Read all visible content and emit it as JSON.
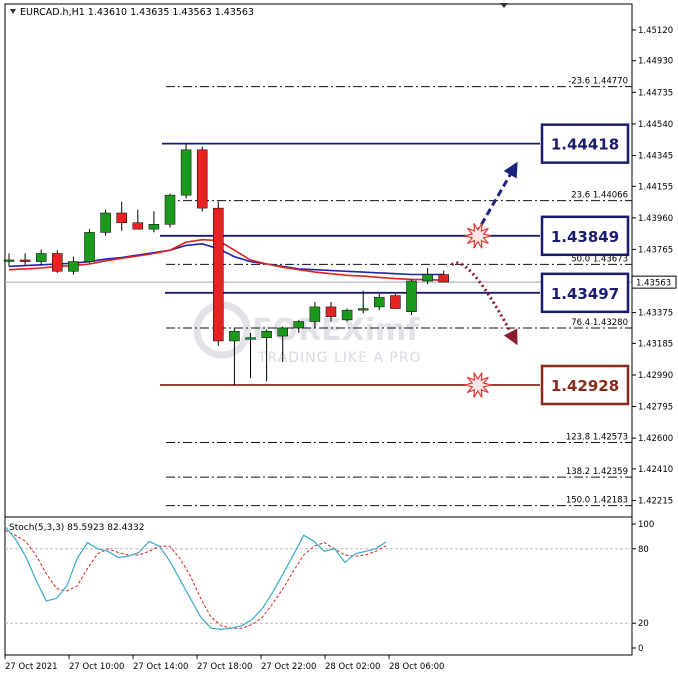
{
  "chart_data": {
    "type": "candlestick",
    "symbol_title": "EURCAD.h,H1  1.43610 1.43635 1.43563 1.43563",
    "current_price": "1.43563",
    "price_axis": {
      "ylim": [
        1.4215,
        1.452
      ],
      "ticks": [
        "1.45120",
        "1.44930",
        "1.44735",
        "1.44540",
        "1.44345",
        "1.44155",
        "1.43960",
        "1.43765",
        "1.43570",
        "1.43375",
        "1.43185",
        "1.42990",
        "1.42795",
        "1.42600",
        "1.42410",
        "1.42215"
      ]
    },
    "time_labels": [
      "27 Oct 2021",
      "27 Oct 10:00",
      "27 Oct 14:00",
      "27 Oct 18:00",
      "27 Oct 22:00",
      "28 Oct 02:00",
      "28 Oct 06:00"
    ],
    "candles": [
      {
        "o": 1.43695,
        "h": 1.4374,
        "l": 1.4366,
        "c": 1.437
      },
      {
        "o": 1.437,
        "h": 1.4374,
        "l": 1.4367,
        "c": 1.4369
      },
      {
        "o": 1.4369,
        "h": 1.43765,
        "l": 1.4367,
        "c": 1.4374
      },
      {
        "o": 1.4374,
        "h": 1.4376,
        "l": 1.4362,
        "c": 1.4363
      },
      {
        "o": 1.4363,
        "h": 1.4372,
        "l": 1.4361,
        "c": 1.4369
      },
      {
        "o": 1.4369,
        "h": 1.4389,
        "l": 1.4368,
        "c": 1.4387
      },
      {
        "o": 1.4387,
        "h": 1.4401,
        "l": 1.4385,
        "c": 1.4399
      },
      {
        "o": 1.4399,
        "h": 1.4406,
        "l": 1.4388,
        "c": 1.4393
      },
      {
        "o": 1.4393,
        "h": 1.4401,
        "l": 1.4389,
        "c": 1.4389
      },
      {
        "o": 1.4389,
        "h": 1.44,
        "l": 1.4387,
        "c": 1.4392
      },
      {
        "o": 1.4392,
        "h": 1.4411,
        "l": 1.439,
        "c": 1.441
      },
      {
        "o": 1.441,
        "h": 1.44418,
        "l": 1.4408,
        "c": 1.4438
      },
      {
        "o": 1.4438,
        "h": 1.444,
        "l": 1.44,
        "c": 1.4402
      },
      {
        "o": 1.4402,
        "h": 1.4406,
        "l": 1.4317,
        "c": 1.432
      },
      {
        "o": 1.432,
        "h": 1.4328,
        "l": 1.42928,
        "c": 1.4326
      },
      {
        "o": 1.4321,
        "h": 1.4325,
        "l": 1.4297,
        "c": 1.4322
      },
      {
        "o": 1.4322,
        "h": 1.4327,
        "l": 1.4295,
        "c": 1.4326
      },
      {
        "o": 1.4323,
        "h": 1.4329,
        "l": 1.4307,
        "c": 1.4328
      },
      {
        "o": 1.4328,
        "h": 1.4333,
        "l": 1.4325,
        "c": 1.4332
      },
      {
        "o": 1.4332,
        "h": 1.4344,
        "l": 1.4328,
        "c": 1.4341
      },
      {
        "o": 1.4341,
        "h": 1.4344,
        "l": 1.4332,
        "c": 1.4335
      },
      {
        "o": 1.4333,
        "h": 1.434,
        "l": 1.4332,
        "c": 1.4339
      },
      {
        "o": 1.4339,
        "h": 1.4351,
        "l": 1.4337,
        "c": 1.434
      },
      {
        "o": 1.4341,
        "h": 1.4349,
        "l": 1.4339,
        "c": 1.4347
      },
      {
        "o": 1.4348,
        "h": 1.4349,
        "l": 1.434,
        "c": 1.434
      },
      {
        "o": 1.4338,
        "h": 1.4358,
        "l": 1.4336,
        "c": 1.4357
      },
      {
        "o": 1.4357,
        "h": 1.4365,
        "l": 1.4355,
        "c": 1.4361
      },
      {
        "o": 1.4361,
        "h": 1.43635,
        "l": 1.43563,
        "c": 1.43563
      }
    ],
    "moving_averages": [
      {
        "color": "#2222aa",
        "values": [
          1.4366,
          1.43665,
          1.4367,
          1.43675,
          1.4368,
          1.4369,
          1.43705,
          1.43715,
          1.4373,
          1.43745,
          1.4376,
          1.4379,
          1.438,
          1.4377,
          1.4372,
          1.4369,
          1.43675,
          1.4366,
          1.43645,
          1.4364,
          1.43635,
          1.4363,
          1.43625,
          1.4362,
          1.43615,
          1.4361,
          1.4361,
          1.4361
        ]
      },
      {
        "color": "#dd2222",
        "values": [
          1.4364,
          1.43645,
          1.4365,
          1.4366,
          1.43665,
          1.43675,
          1.43695,
          1.4371,
          1.43725,
          1.4374,
          1.4376,
          1.4381,
          1.43825,
          1.4382,
          1.4376,
          1.437,
          1.43675,
          1.43655,
          1.4364,
          1.43625,
          1.43615,
          1.43605,
          1.436,
          1.43592,
          1.43585,
          1.4358,
          1.43578,
          1.43575
        ]
      }
    ],
    "fib_levels": [
      {
        "label": "-23.6  1.44770",
        "price": 1.4477
      },
      {
        "label": "23.6  1.44066",
        "price": 1.44066
      },
      {
        "label": "50.0  1.43673",
        "price": 1.43673
      },
      {
        "label": "76.4  1.43280",
        "price": 1.4328
      },
      {
        "label": "123.8  1.42573",
        "price": 1.42573
      },
      {
        "label": "138.2  1.42359",
        "price": 1.42359
      },
      {
        "label": "150.0  1.42183",
        "price": 1.42183
      }
    ],
    "key_levels": [
      {
        "label": "1.44418",
        "price": 1.44418,
        "color": "#1a1a6e"
      },
      {
        "label": "1.43849",
        "price": 1.43849,
        "color": "#1a1a6e"
      },
      {
        "label": "1.43497",
        "price": 1.43497,
        "color": "#1a1a6e"
      },
      {
        "label": "1.42928",
        "price": 1.42928,
        "color": "#8b2a1a"
      }
    ],
    "projections": [
      {
        "from_bar": 27.5,
        "from_price": 1.4367,
        "to_bar": 31.5,
        "to_price": 1.4319,
        "color": "#8b1a2a",
        "style": "dotted",
        "curved": true
      },
      {
        "from_bar": 29,
        "from_price": 1.4386,
        "to_bar": 31.5,
        "to_price": 1.4429,
        "color": "#1a237e",
        "style": "dashed",
        "curved": false
      }
    ],
    "bursts": [
      {
        "bar": 29,
        "price": 1.43849
      },
      {
        "bar": 29,
        "price": 1.42928
      }
    ],
    "watermark": {
      "brand": "FOREXimf",
      "tagline": "TRADING LIKE A PRO"
    },
    "oscillator": {
      "title": "Stoch(5,3,3) 85.5923 82.4332",
      "ylim": [
        0,
        100
      ],
      "ticks": [
        "100",
        "80",
        "20",
        "0"
      ],
      "levels": [
        80,
        20
      ],
      "main_color": "#3aa9c9",
      "signal_color": "#dd2222",
      "main": [
        98,
        88,
        74,
        55,
        38,
        40,
        50,
        72,
        85,
        80,
        78,
        73,
        74,
        77,
        86,
        82,
        70,
        55,
        40,
        25,
        16,
        15,
        16,
        18,
        23,
        32,
        45,
        60,
        75,
        91,
        86,
        78,
        80,
        69,
        76,
        78,
        80,
        85.6
      ],
      "signal": [
        95,
        91,
        86,
        75,
        60,
        48,
        46,
        50,
        64,
        76,
        80,
        77,
        75,
        75,
        78,
        82,
        82,
        72,
        58,
        40,
        25,
        18,
        16,
        16,
        19,
        25,
        36,
        48,
        62,
        75,
        82,
        85,
        80,
        75,
        74,
        75,
        78,
        82.4
      ]
    }
  }
}
